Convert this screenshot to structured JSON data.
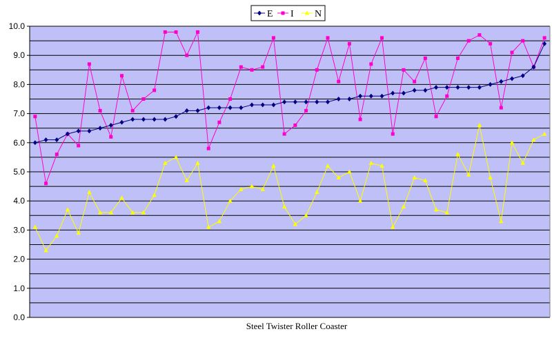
{
  "chart_data": {
    "type": "line",
    "title": "",
    "xlabel": "Steel Twister Roller Coaster",
    "ylabel": "",
    "ylim": [
      0,
      10
    ],
    "yticks": [
      "0.0",
      "1.0",
      "2.0",
      "3.0",
      "4.0",
      "5.0",
      "6.0",
      "7.0",
      "8.0",
      "9.0",
      "10.0"
    ],
    "grid": true,
    "legend_position": "top-center",
    "plot_background": "#c0c0f8",
    "series": [
      {
        "name": "E",
        "color": "#000080",
        "marker": "diamond",
        "values": [
          6.0,
          6.1,
          6.1,
          6.3,
          6.4,
          6.4,
          6.5,
          6.6,
          6.7,
          6.8,
          6.8,
          6.8,
          6.8,
          6.9,
          7.1,
          7.1,
          7.2,
          7.2,
          7.2,
          7.2,
          7.3,
          7.3,
          7.3,
          7.4,
          7.4,
          7.4,
          7.4,
          7.4,
          7.5,
          7.5,
          7.6,
          7.6,
          7.6,
          7.7,
          7.7,
          7.8,
          7.8,
          7.9,
          7.9,
          7.9,
          7.9,
          7.9,
          8.0,
          8.1,
          8.2,
          8.3,
          8.6,
          9.4
        ]
      },
      {
        "name": "I",
        "color": "#ff00cc",
        "marker": "square",
        "values": [
          6.9,
          4.6,
          5.6,
          6.3,
          5.9,
          8.7,
          7.1,
          6.2,
          8.3,
          7.1,
          7.5,
          7.8,
          9.8,
          9.8,
          9.0,
          9.8,
          5.8,
          6.7,
          7.5,
          8.6,
          8.5,
          8.6,
          9.6,
          6.3,
          6.6,
          7.1,
          8.5,
          9.6,
          8.1,
          9.4,
          6.8,
          8.7,
          9.6,
          6.3,
          8.5,
          8.1,
          8.9,
          6.9,
          7.6,
          8.9,
          9.5,
          9.7,
          9.4,
          7.2,
          9.1,
          9.5,
          8.6,
          9.6
        ]
      },
      {
        "name": "N",
        "color": "#ffff00",
        "marker": "triangle",
        "values": [
          3.1,
          2.3,
          2.8,
          3.7,
          2.9,
          4.3,
          3.6,
          3.6,
          4.1,
          3.6,
          3.6,
          4.2,
          5.3,
          5.5,
          4.7,
          5.3,
          3.1,
          3.3,
          4.0,
          4.4,
          4.5,
          4.4,
          5.2,
          3.8,
          3.2,
          3.5,
          4.3,
          5.2,
          4.8,
          5.0,
          4.0,
          5.3,
          5.2,
          3.1,
          3.8,
          4.8,
          4.7,
          3.7,
          3.6,
          5.6,
          4.9,
          6.6,
          4.8,
          3.3,
          6.0,
          5.3,
          6.1,
          6.3
        ]
      }
    ]
  }
}
